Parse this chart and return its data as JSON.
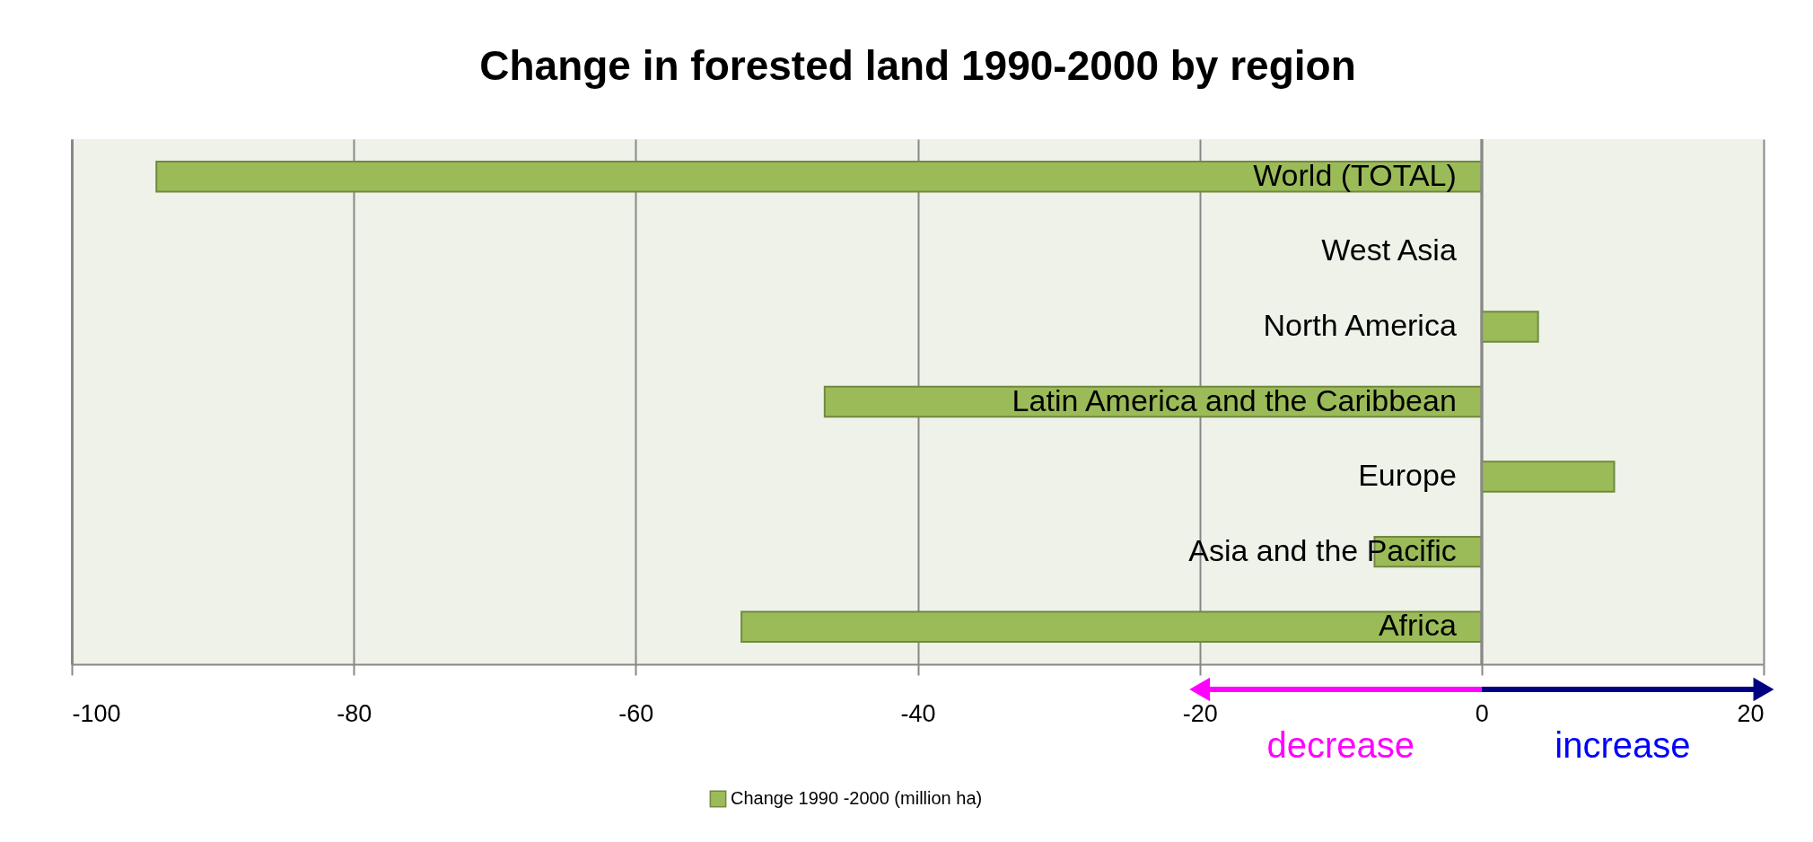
{
  "chart_data": {
    "type": "bar",
    "orientation": "horizontal",
    "title": "Change in forested land 1990-2000 by region",
    "categories": [
      "World (TOTAL)",
      "West Asia",
      "North America",
      "Latin America and the Caribbean",
      "Europe",
      "Asia and the Pacific",
      "Africa"
    ],
    "series": [
      {
        "name": "Change 1990 -2000 (million ha)",
        "color": "#9bbb59",
        "values": [
          -94.0,
          null,
          4.0,
          -46.6,
          9.4,
          -7.6,
          -52.5
        ]
      }
    ],
    "xlim": [
      -100,
      20
    ],
    "xticks": [
      -100,
      -80,
      -60,
      -40,
      -20,
      0,
      20
    ],
    "grid": "x",
    "legend": "bottom",
    "annotations": [
      "decrease",
      "increase"
    ]
  }
}
